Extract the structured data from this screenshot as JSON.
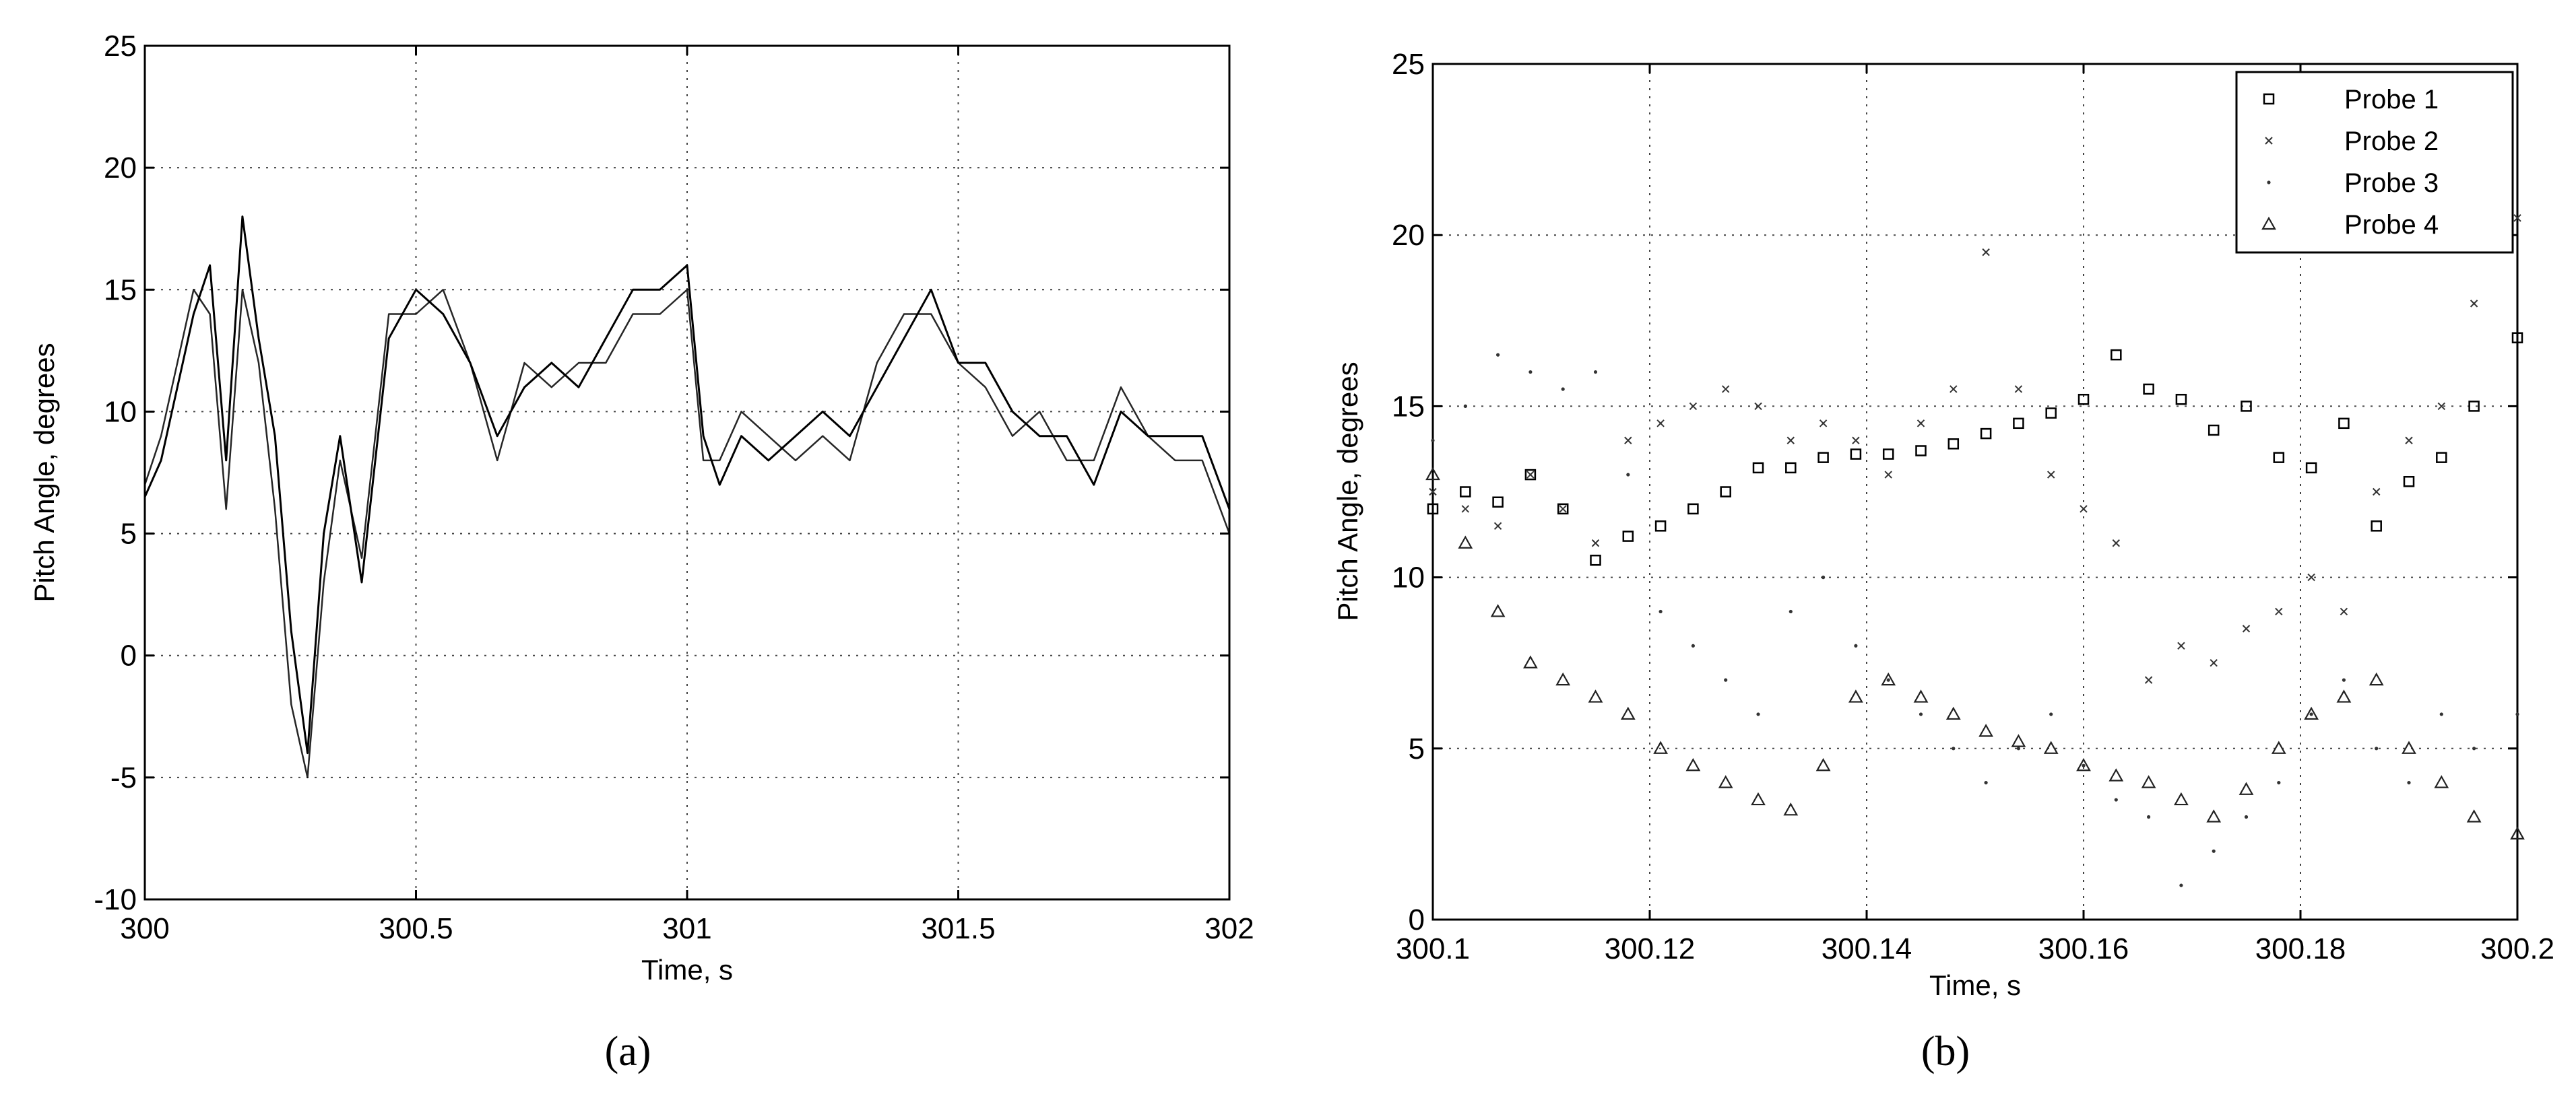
{
  "chart_data": [
    {
      "type": "line",
      "panel_label": "(a)",
      "xlabel": "Time, s",
      "ylabel": "Pitch Angle, degrees",
      "xlim": [
        300,
        302
      ],
      "ylim": [
        -10,
        25
      ],
      "xticks": [
        "300",
        "300.5",
        "301",
        "301.5",
        "302"
      ],
      "yticks": [
        "-10",
        "-5",
        "0",
        "5",
        "10",
        "15",
        "20",
        "25"
      ],
      "grid": true,
      "series_color": "#000000",
      "series": [
        {
          "x": [
            300.0,
            300.03,
            300.06,
            300.09,
            300.12,
            300.15,
            300.18,
            300.21,
            300.24,
            300.27,
            300.3,
            300.33,
            300.36,
            300.4,
            300.45,
            300.5,
            300.55,
            300.6,
            300.65,
            300.7,
            300.75,
            300.8,
            300.85,
            300.9,
            300.95,
            301.0,
            301.03,
            301.06,
            301.1,
            301.15,
            301.2,
            301.25,
            301.3,
            301.35,
            301.4,
            301.45,
            301.5,
            301.55,
            301.6,
            301.65,
            301.7,
            301.75,
            301.8,
            301.85,
            301.9,
            301.95,
            302.0
          ],
          "y": [
            6.5,
            8,
            11,
            14,
            16,
            8,
            18,
            13,
            9,
            1,
            -4,
            5,
            9,
            3,
            13,
            15,
            14,
            12,
            9,
            11,
            12,
            11,
            13,
            15,
            15,
            16,
            9,
            7,
            9,
            8,
            9,
            10,
            9,
            11,
            13,
            15,
            12,
            12,
            10,
            9,
            9,
            7,
            10,
            9,
            9,
            9,
            6
          ]
        },
        {
          "x": [
            300.0,
            300.03,
            300.06,
            300.09,
            300.12,
            300.15,
            300.18,
            300.21,
            300.24,
            300.27,
            300.3,
            300.33,
            300.36,
            300.4,
            300.45,
            300.5,
            300.55,
            300.6,
            300.65,
            300.7,
            300.75,
            300.8,
            300.85,
            300.9,
            300.95,
            301.0,
            301.03,
            301.06,
            301.1,
            301.15,
            301.2,
            301.25,
            301.3,
            301.35,
            301.4,
            301.45,
            301.5,
            301.55,
            301.6,
            301.65,
            301.7,
            301.75,
            301.8,
            301.85,
            301.9,
            301.95,
            302.0
          ],
          "y": [
            7,
            9,
            12,
            15,
            14,
            6,
            15,
            12,
            6,
            -2,
            -5,
            3,
            8,
            4,
            14,
            14,
            15,
            12,
            8,
            12,
            11,
            12,
            12,
            14,
            14,
            15,
            8,
            8,
            10,
            9,
            8,
            9,
            8,
            12,
            14,
            14,
            12,
            11,
            9,
            10,
            8,
            8,
            11,
            9,
            8,
            8,
            5
          ]
        }
      ]
    },
    {
      "type": "scatter",
      "panel_label": "(b)",
      "xlabel": "Time, s",
      "ylabel": "Pitch Angle, degrees",
      "xlim": [
        300.1,
        300.2
      ],
      "ylim": [
        0,
        25
      ],
      "xticks": [
        "300.1",
        "300.12",
        "300.14",
        "300.16",
        "300.18",
        "300.2"
      ],
      "yticks": [
        "0",
        "5",
        "10",
        "15",
        "20",
        "25"
      ],
      "grid": true,
      "legend": "top-right",
      "series": [
        {
          "name": "Probe 1",
          "marker": "square",
          "x": [
            300.1,
            300.103,
            300.106,
            300.109,
            300.112,
            300.115,
            300.118,
            300.121,
            300.124,
            300.127,
            300.13,
            300.133,
            300.136,
            300.139,
            300.142,
            300.145,
            300.148,
            300.151,
            300.154,
            300.157,
            300.16,
            300.163,
            300.166,
            300.169,
            300.172,
            300.175,
            300.178,
            300.181,
            300.184,
            300.187,
            300.19,
            300.193,
            300.196,
            300.2
          ],
          "y": [
            12,
            12.5,
            12.2,
            13,
            12,
            10.5,
            11.2,
            11.5,
            12,
            12.5,
            13.2,
            13.2,
            13.5,
            13.6,
            13.6,
            13.7,
            13.9,
            14.2,
            14.5,
            14.8,
            15.2,
            16.5,
            15.5,
            15.2,
            14.3,
            15,
            13.5,
            13.2,
            14.5,
            11.5,
            12.8,
            13.5,
            15,
            17
          ]
        },
        {
          "name": "Probe 2",
          "marker": "x",
          "x": [
            300.1,
            300.103,
            300.106,
            300.109,
            300.112,
            300.115,
            300.118,
            300.121,
            300.124,
            300.127,
            300.13,
            300.133,
            300.136,
            300.139,
            300.142,
            300.145,
            300.148,
            300.151,
            300.154,
            300.157,
            300.16,
            300.163,
            300.166,
            300.169,
            300.172,
            300.175,
            300.178,
            300.181,
            300.184,
            300.187,
            300.19,
            300.193,
            300.196,
            300.2
          ],
          "y": [
            12.5,
            12,
            11.5,
            13,
            12,
            11,
            14,
            14.5,
            15,
            15.5,
            15,
            14,
            14.5,
            14,
            13,
            14.5,
            15.5,
            19.5,
            15.5,
            13,
            12,
            11,
            7,
            8,
            7.5,
            8.5,
            9,
            10,
            9,
            12.5,
            14,
            15,
            18,
            20.5
          ]
        },
        {
          "name": "Probe 3",
          "marker": "dot",
          "x": [
            300.1,
            300.103,
            300.106,
            300.109,
            300.112,
            300.115,
            300.118,
            300.121,
            300.124,
            300.127,
            300.13,
            300.133,
            300.136,
            300.139,
            300.142,
            300.145,
            300.148,
            300.151,
            300.154,
            300.157,
            300.16,
            300.163,
            300.166,
            300.169,
            300.172,
            300.175,
            300.178,
            300.181,
            300.184,
            300.187,
            300.19,
            300.193,
            300.196,
            300.2
          ],
          "y": [
            14,
            15,
            16.5,
            16,
            15.5,
            16,
            13,
            9,
            8,
            7,
            6,
            9,
            10,
            8,
            7,
            6,
            5,
            4,
            5,
            6,
            4.5,
            3.5,
            3,
            1,
            2,
            3,
            4,
            6,
            7,
            5,
            4,
            6,
            5,
            6
          ]
        },
        {
          "name": "Probe 4",
          "marker": "triangle",
          "x": [
            300.1,
            300.103,
            300.106,
            300.109,
            300.112,
            300.115,
            300.118,
            300.121,
            300.124,
            300.127,
            300.13,
            300.133,
            300.136,
            300.139,
            300.142,
            300.145,
            300.148,
            300.151,
            300.154,
            300.157,
            300.16,
            300.163,
            300.166,
            300.169,
            300.172,
            300.175,
            300.178,
            300.181,
            300.184,
            300.187,
            300.19,
            300.193,
            300.196,
            300.2
          ],
          "y": [
            13,
            11,
            9,
            7.5,
            7,
            6.5,
            6,
            5,
            4.5,
            4,
            3.5,
            3.2,
            4.5,
            6.5,
            7,
            6.5,
            6,
            5.5,
            5.2,
            5,
            4.5,
            4.2,
            4,
            3.5,
            3,
            3.8,
            5,
            6,
            6.5,
            7,
            5,
            4,
            3,
            2.5
          ]
        }
      ]
    }
  ]
}
